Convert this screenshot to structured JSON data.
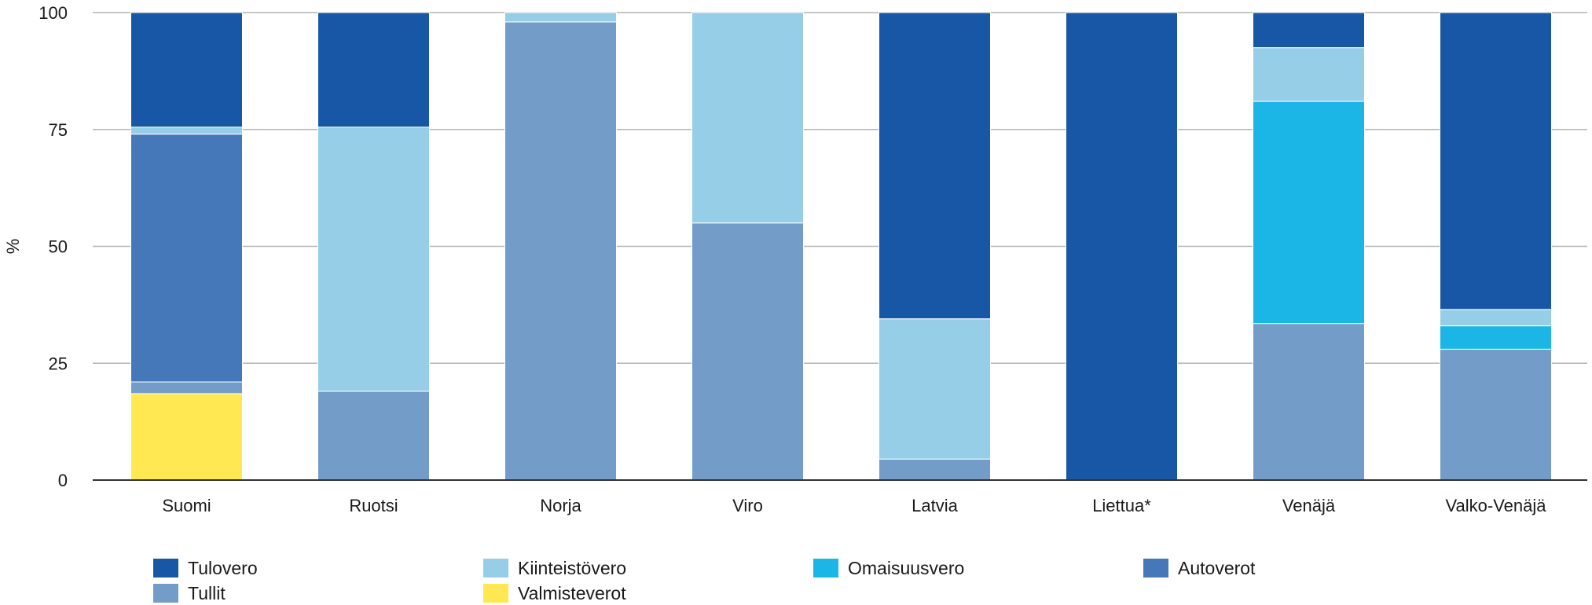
{
  "chart_data": {
    "type": "bar",
    "stacked": true,
    "ylabel": "%",
    "ylim": [
      0,
      100
    ],
    "yticks": [
      0,
      25,
      50,
      75,
      100
    ],
    "grid": true,
    "legend_position": "bottom",
    "categories": [
      "Suomi",
      "Ruotsi",
      "Norja",
      "Viro",
      "Latvia",
      "Liettua*",
      "Venäjä",
      "Valko-Venäjä"
    ],
    "series": [
      {
        "name": "Valmisteverot",
        "color": "#FFE852",
        "values": [
          18.5,
          0,
          0,
          0,
          0,
          0,
          0,
          0
        ]
      },
      {
        "name": "Tullit",
        "color": "#739CC9",
        "values": [
          2.5,
          19,
          98,
          55,
          4.5,
          0,
          33.5,
          28
        ]
      },
      {
        "name": "Autoverot",
        "color": "#4578B8",
        "values": [
          53,
          0,
          0,
          0,
          0,
          0,
          0,
          0
        ]
      },
      {
        "name": "Omaisuusvero",
        "color": "#1BB6E6",
        "values": [
          0,
          0,
          0,
          0,
          0,
          0,
          47.5,
          5
        ]
      },
      {
        "name": "Kiinteistövero",
        "color": "#96CDE7",
        "values": [
          1.5,
          56.5,
          2,
          45,
          30,
          0,
          11.5,
          3.5
        ]
      },
      {
        "name": "Tulovero",
        "color": "#1757A6",
        "values": [
          24.5,
          24.5,
          0,
          0,
          65.5,
          100,
          7.5,
          63.5
        ]
      }
    ],
    "legend_order": [
      "Tulovero",
      "Kiinteistövero",
      "Omaisuusvero",
      "Autoverot",
      "Tullit",
      "Valmisteverot"
    ]
  }
}
